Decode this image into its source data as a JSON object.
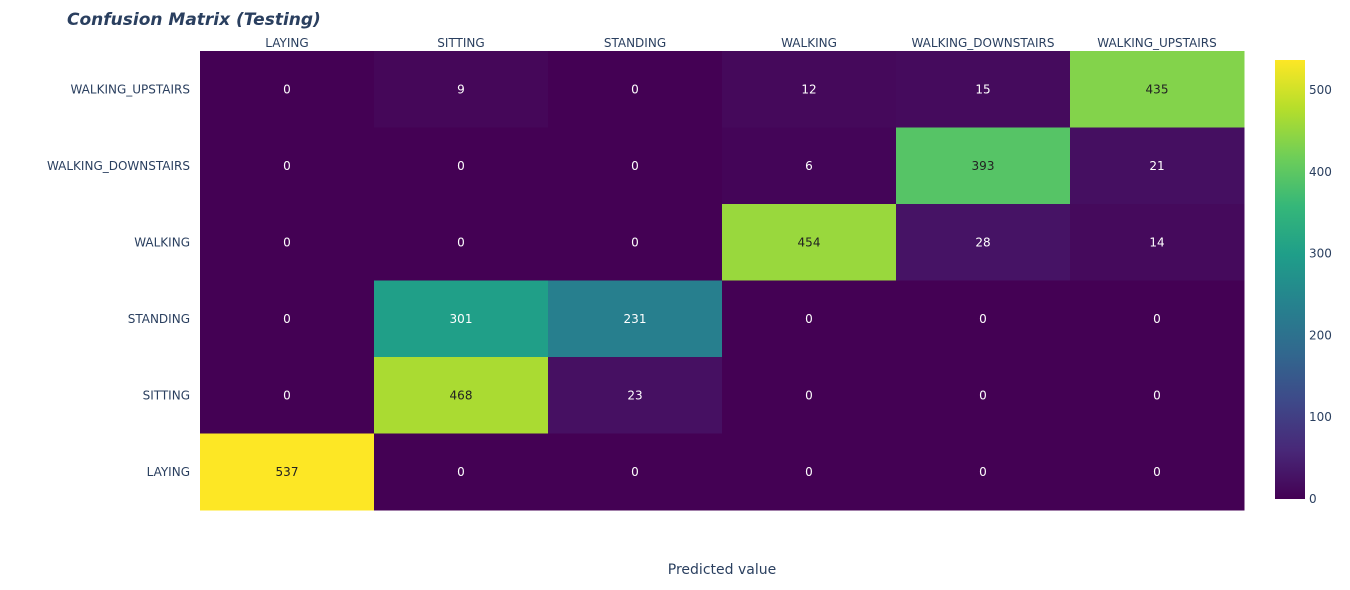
{
  "chart_data": {
    "type": "heatmap",
    "title": "Confusion Matrix (Testing)",
    "xlabel": "Predicted value",
    "ylabel": "",
    "x_categories": [
      "LAYING",
      "SITTING",
      "STANDING",
      "WALKING",
      "WALKING_DOWNSTAIRS",
      "WALKING_UPSTAIRS"
    ],
    "y_categories": [
      "WALKING_UPSTAIRS",
      "WALKING_DOWNSTAIRS",
      "WALKING",
      "STANDING",
      "SITTING",
      "LAYING"
    ],
    "z": [
      [
        0,
        9,
        0,
        12,
        15,
        435
      ],
      [
        0,
        0,
        0,
        6,
        393,
        21
      ],
      [
        0,
        0,
        0,
        454,
        28,
        14
      ],
      [
        0,
        301,
        231,
        0,
        0,
        0
      ],
      [
        0,
        468,
        23,
        0,
        0,
        0
      ],
      [
        537,
        0,
        0,
        0,
        0,
        0
      ]
    ],
    "zrange": [
      0,
      537
    ],
    "colorscale": "Viridis",
    "colorbar_ticks": [
      0,
      100,
      200,
      300,
      400,
      500
    ],
    "x_axis_position": "top",
    "grid": false
  }
}
